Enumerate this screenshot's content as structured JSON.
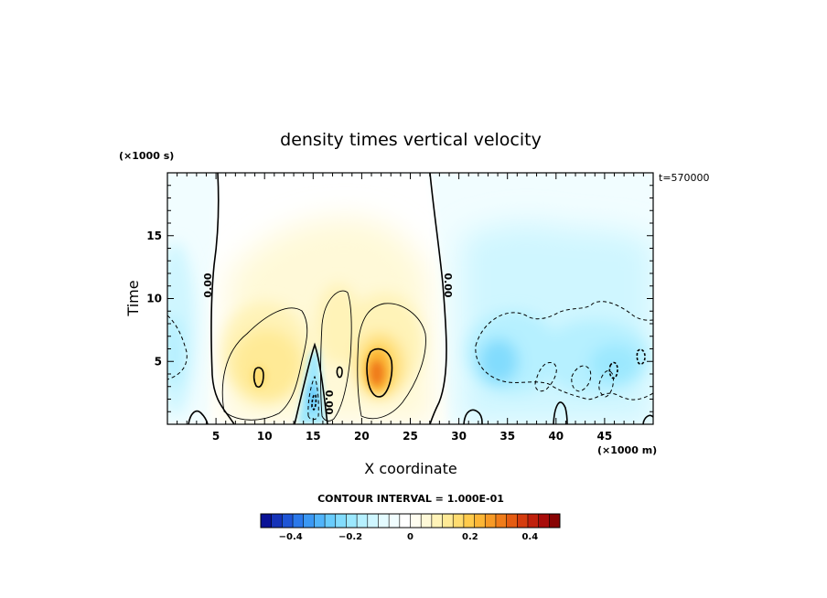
{
  "chart_data": {
    "type": "heatmap",
    "title": "density times vertical velocity",
    "xlabel": "X coordinate",
    "ylabel": "Time",
    "x_unit": "(×1000 m)",
    "y_unit": "(×1000 s)",
    "time_stamp": "t=570000",
    "xlim": [
      0,
      50
    ],
    "ylim": [
      0,
      20
    ],
    "x_ticks": [
      5,
      10,
      15,
      20,
      25,
      30,
      35,
      40,
      45
    ],
    "y_ticks": [
      5,
      10,
      15
    ],
    "contour_interval_text": "CONTOUR INTERVAL = 1.000E-01",
    "zero_contour_labels": [
      "0.00",
      "0.00",
      "0.00"
    ],
    "colorbar": {
      "range": [
        -0.5,
        0.5
      ],
      "ticks": [
        -0.4,
        -0.2,
        0,
        0.2,
        0.4
      ],
      "tick_labels": [
        "−0.4",
        "−0.2",
        "0",
        "0.2",
        "0.4"
      ],
      "colors": [
        "#0a1296",
        "#1533b8",
        "#1e55d6",
        "#2a78ea",
        "#3a98f4",
        "#50b4fa",
        "#68ccfc",
        "#82dcfd",
        "#9ce8fe",
        "#b6f0ff",
        "#cff6ff",
        "#e4fbff",
        "#f1fdff",
        "#ffffff",
        "#fffdf0",
        "#fff9d8",
        "#fff3b8",
        "#ffea96",
        "#ffdc70",
        "#ffcb4c",
        "#fcb636",
        "#f79a26",
        "#f07c1a",
        "#e55c12",
        "#d53c0e",
        "#c0200c",
        "#a80c0a",
        "#880404"
      ]
    },
    "features": [
      {
        "kind": "max",
        "x": 9.0,
        "y": 3.5,
        "value": 0.2
      },
      {
        "kind": "max",
        "x": 17.5,
        "y": 4.0,
        "value": 0.15
      },
      {
        "kind": "max",
        "x": 21.5,
        "y": 3.5,
        "value": 0.35
      },
      {
        "kind": "min",
        "x": 15.0,
        "y": 2.3,
        "value": -0.22
      },
      {
        "kind": "min",
        "x": 33.0,
        "y": 5.0,
        "value": -0.13
      },
      {
        "kind": "min",
        "x": 46.5,
        "y": 4.5,
        "value": -0.12
      },
      {
        "kind": "min",
        "x": 49.0,
        "y": 5.3,
        "value": -0.15
      }
    ]
  }
}
